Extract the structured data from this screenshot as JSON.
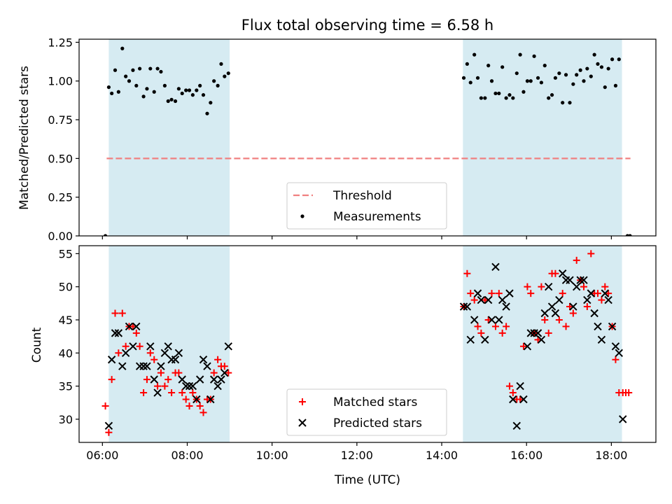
{
  "chart_data": [
    {
      "type": "scatter",
      "title": "Flux total observing time = 6.58 h",
      "xlabel": "",
      "ylabel": "Matched/Predicted stars",
      "xlim": [
        5.45,
        19.05
      ],
      "ylim": [
        0.0,
        1.27
      ],
      "yticks": [
        0.0,
        0.25,
        0.5,
        0.75,
        1.0,
        1.25
      ],
      "ytick_labels": [
        "0.00",
        "0.25",
        "0.50",
        "0.75",
        "1.00",
        "1.25"
      ],
      "xticks": [
        6,
        8,
        10,
        12,
        14,
        16,
        18
      ],
      "xtick_labels": [],
      "grid": false,
      "shaded_spans": [
        [
          6.15,
          9.0
        ],
        [
          14.5,
          18.25
        ]
      ],
      "span_color": "#add8e6",
      "threshold": {
        "name": "Threshold",
        "value": 0.5,
        "x_range": [
          6.1,
          18.45
        ],
        "color": "#f08080"
      },
      "legend": {
        "placement": "lower-center",
        "entries": [
          "Threshold",
          "Measurements"
        ]
      },
      "series": [
        {
          "name": "Measurements",
          "color": "#000000",
          "x": [
            6.07,
            6.15,
            6.22,
            6.3,
            6.38,
            6.47,
            6.55,
            6.63,
            6.72,
            6.8,
            6.88,
            6.97,
            7.05,
            7.13,
            7.22,
            7.3,
            7.38,
            7.47,
            7.55,
            7.63,
            7.72,
            7.8,
            7.88,
            7.97,
            8.05,
            8.13,
            8.22,
            8.3,
            8.38,
            8.47,
            8.55,
            8.63,
            8.72,
            8.8,
            8.88,
            8.97,
            14.52,
            14.6,
            14.68,
            14.77,
            14.85,
            14.93,
            15.02,
            15.1,
            15.18,
            15.27,
            15.35,
            15.43,
            15.52,
            15.6,
            15.68,
            15.77,
            15.85,
            15.93,
            16.02,
            16.1,
            16.18,
            16.27,
            16.35,
            16.43,
            16.52,
            16.6,
            16.68,
            16.77,
            16.85,
            16.93,
            17.02,
            17.1,
            17.18,
            17.27,
            17.35,
            17.43,
            17.52,
            17.6,
            17.68,
            17.77,
            17.85,
            17.93,
            18.02,
            18.1,
            18.18,
            18.38,
            18.44
          ],
          "y": [
            0.0,
            0.96,
            0.92,
            1.07,
            0.93,
            1.21,
            1.03,
            1.0,
            1.07,
            0.97,
            1.08,
            0.9,
            0.95,
            1.08,
            0.93,
            1.08,
            1.06,
            0.97,
            0.87,
            0.88,
            0.87,
            0.95,
            0.92,
            0.94,
            0.94,
            0.91,
            0.94,
            0.97,
            0.91,
            0.79,
            0.86,
            1.0,
            0.97,
            1.11,
            1.03,
            1.05,
            1.02,
            1.11,
            0.99,
            1.17,
            1.02,
            0.89,
            0.89,
            1.1,
            1.0,
            0.92,
            0.92,
            1.09,
            0.89,
            0.91,
            0.89,
            1.05,
            1.17,
            0.93,
            1.0,
            1.0,
            1.16,
            1.02,
            0.99,
            1.1,
            0.89,
            0.91,
            1.02,
            1.05,
            0.86,
            1.04,
            0.86,
            0.98,
            1.04,
            1.07,
            1.0,
            1.08,
            1.03,
            1.17,
            1.11,
            1.09,
            0.96,
            1.08,
            1.14,
            0.97,
            1.14,
            0.0,
            0.0
          ]
        }
      ]
    },
    {
      "type": "scatter",
      "title": "",
      "xlabel": "Time (UTC)",
      "ylabel": "Count",
      "xlim": [
        5.45,
        19.05
      ],
      "ylim": [
        26.5,
        56.2
      ],
      "yticks": [
        30,
        35,
        40,
        45,
        50,
        55
      ],
      "ytick_labels": [
        "30",
        "35",
        "40",
        "45",
        "50",
        "55"
      ],
      "xticks": [
        6,
        8,
        10,
        12,
        14,
        16,
        18
      ],
      "xtick_labels": [
        "06:00",
        "08:00",
        "10:00",
        "12:00",
        "14:00",
        "16:00",
        "18:00"
      ],
      "grid": false,
      "shaded_spans": [
        [
          6.15,
          9.0
        ],
        [
          14.5,
          18.25
        ]
      ],
      "span_color": "#add8e6",
      "legend": {
        "placement": "lower-center",
        "entries": [
          "Matched stars",
          "Predicted stars"
        ]
      },
      "series": [
        {
          "name": "Matched stars",
          "marker": "plus",
          "color": "#ff0000",
          "x": [
            6.07,
            6.15,
            6.22,
            6.3,
            6.38,
            6.47,
            6.55,
            6.63,
            6.72,
            6.8,
            6.88,
            6.97,
            7.05,
            7.13,
            7.22,
            7.3,
            7.38,
            7.47,
            7.55,
            7.63,
            7.72,
            7.8,
            7.88,
            7.97,
            8.05,
            8.13,
            8.22,
            8.3,
            8.38,
            8.47,
            8.55,
            8.63,
            8.72,
            8.8,
            8.88,
            8.97,
            14.52,
            14.6,
            14.68,
            14.77,
            14.85,
            14.93,
            15.02,
            15.1,
            15.18,
            15.27,
            15.35,
            15.43,
            15.52,
            15.6,
            15.68,
            15.77,
            15.85,
            15.93,
            16.02,
            16.1,
            16.18,
            16.27,
            16.35,
            16.43,
            16.52,
            16.6,
            16.68,
            16.77,
            16.85,
            16.93,
            17.02,
            17.1,
            17.18,
            17.27,
            17.35,
            17.43,
            17.52,
            17.6,
            17.68,
            17.77,
            17.85,
            17.93,
            18.02,
            18.1,
            18.18,
            18.27,
            18.34,
            18.41
          ],
          "y": [
            32,
            28,
            36,
            46,
            40,
            46,
            41,
            44,
            44,
            43,
            41,
            34,
            36,
            40,
            39,
            35,
            37,
            35,
            36,
            34,
            37,
            37,
            34,
            33,
            32,
            34,
            33,
            32,
            31,
            33,
            33,
            37,
            39,
            38,
            38,
            37,
            47,
            52,
            49,
            48,
            44,
            43,
            48,
            45,
            49,
            44,
            49,
            43,
            44,
            35,
            34,
            33,
            33,
            41,
            50,
            49,
            43,
            42,
            50,
            45,
            43,
            52,
            52,
            45,
            49,
            44,
            47,
            46,
            54,
            51,
            50,
            47,
            55,
            49,
            49,
            48,
            50,
            49,
            44,
            39,
            34,
            34,
            34,
            34
          ]
        },
        {
          "name": "Predicted stars",
          "marker": "x",
          "color": "#000000",
          "x": [
            6.15,
            6.22,
            6.3,
            6.38,
            6.47,
            6.55,
            6.63,
            6.72,
            6.8,
            6.88,
            6.97,
            7.05,
            7.13,
            7.22,
            7.3,
            7.38,
            7.47,
            7.55,
            7.63,
            7.72,
            7.8,
            7.88,
            7.97,
            8.05,
            8.13,
            8.22,
            8.3,
            8.38,
            8.47,
            8.55,
            8.63,
            8.72,
            8.8,
            8.88,
            8.97,
            14.52,
            14.6,
            14.68,
            14.77,
            14.85,
            14.93,
            15.02,
            15.1,
            15.18,
            15.27,
            15.35,
            15.43,
            15.52,
            15.6,
            15.68,
            15.77,
            15.85,
            15.93,
            16.02,
            16.1,
            16.18,
            16.27,
            16.35,
            16.43,
            16.52,
            16.6,
            16.68,
            16.77,
            16.85,
            16.93,
            17.02,
            17.1,
            17.18,
            17.27,
            17.35,
            17.43,
            17.52,
            17.6,
            17.68,
            17.77,
            17.85,
            17.93,
            18.02,
            18.1,
            18.18,
            18.27
          ],
          "y": [
            29,
            39,
            43,
            43,
            38,
            40,
            44,
            41,
            44,
            38,
            38,
            38,
            41,
            36,
            34,
            38,
            40,
            41,
            39,
            39,
            40,
            36,
            35,
            35,
            35,
            33,
            36,
            39,
            38,
            33,
            36,
            35,
            36,
            37,
            41,
            47,
            47,
            42,
            45,
            49,
            48,
            42,
            48,
            45,
            53,
            45,
            48,
            47,
            49,
            33,
            29,
            35,
            33,
            41,
            43,
            43,
            43,
            42,
            46,
            50,
            47,
            46,
            48,
            52,
            51,
            51,
            47,
            50,
            51,
            51,
            48,
            49,
            46,
            44,
            42,
            49,
            48,
            44,
            41,
            40,
            30
          ]
        }
      ]
    }
  ]
}
